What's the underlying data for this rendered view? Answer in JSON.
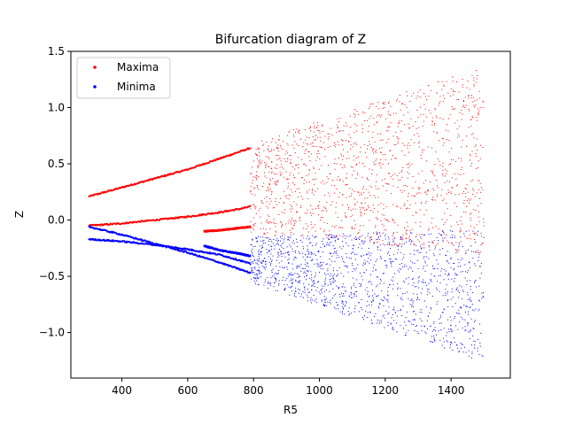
{
  "chart_data": {
    "type": "scatter",
    "title": "Bifurcation diagram of Z",
    "xlabel": "R5",
    "ylabel": "Z",
    "xlim": [
      245,
      1580
    ],
    "ylim": [
      -1.405,
      1.5
    ],
    "xticks": [
      400,
      600,
      800,
      1000,
      1200,
      1400
    ],
    "yticks": [
      -1.0,
      -0.5,
      0.0,
      0.5,
      1.0,
      1.5
    ],
    "xtick_labels": [
      "400",
      "600",
      "800",
      "1000",
      "1200",
      "1400"
    ],
    "ytick_labels": [
      "−1.0",
      "−0.5",
      "0.0",
      "0.5",
      "1.0",
      "1.5"
    ],
    "x_range": [
      300,
      1500
    ],
    "grid": false,
    "legend_position": "upper-left",
    "series": [
      {
        "name": "Maxima",
        "color": "#ff0000",
        "branches": [
          {
            "x": [
              300,
              400,
              500,
              600,
              700,
              760,
              790
            ],
            "y": [
              0.21,
              0.29,
              0.37,
              0.45,
              0.55,
              0.61,
              0.64
            ]
          },
          {
            "x": [
              300,
              400,
              500,
              600,
              700,
              760,
              790
            ],
            "y": [
              -0.05,
              -0.03,
              0.0,
              0.03,
              0.07,
              0.1,
              0.12
            ]
          },
          {
            "x": [
              650,
              700,
              760,
              790
            ],
            "y": [
              -0.1,
              -0.09,
              -0.07,
              -0.06
            ]
          }
        ],
        "chaotic_band": {
          "x": [
            790,
            1500
          ],
          "ymin_start": -0.12,
          "ymin_end": -0.3,
          "ymax_start": 0.68,
          "ymax_end": 1.37
        }
      },
      {
        "name": "Minima",
        "color": "#0000ff",
        "branches": [
          {
            "x": [
              300,
              400,
              500,
              600,
              700,
              760,
              790
            ],
            "y": [
              -0.06,
              -0.13,
              -0.21,
              -0.29,
              -0.38,
              -0.44,
              -0.47
            ]
          },
          {
            "x": [
              300,
              400,
              500,
              600,
              700,
              760,
              790
            ],
            "y": [
              -0.17,
              -0.19,
              -0.22,
              -0.26,
              -0.31,
              -0.36,
              -0.39
            ]
          },
          {
            "x": [
              650,
              700,
              760,
              790
            ],
            "y": [
              -0.23,
              -0.27,
              -0.3,
              -0.32
            ]
          }
        ],
        "chaotic_band": {
          "x": [
            790,
            1500
          ],
          "ymin_start": -0.55,
          "ymin_end": -1.27,
          "ymax_start": -0.15,
          "ymax_end": -0.08
        }
      }
    ]
  }
}
